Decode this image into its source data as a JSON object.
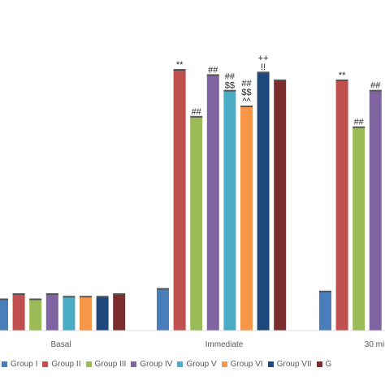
{
  "chart_data": {
    "type": "bar",
    "title": "",
    "xlabel": "",
    "ylabel": "",
    "categories": [
      "Basal",
      "Immediate",
      "30 mi"
    ],
    "ylim": [
      0,
      100
    ],
    "grid": false,
    "legend_position": "bottom",
    "series": [
      {
        "name": "Group I",
        "color": "#4A7EBB",
        "values": [
          12,
          16,
          15
        ]
      },
      {
        "name": "Group II",
        "color": "#C0504D",
        "values": [
          14,
          100,
          96
        ]
      },
      {
        "name": "Group III",
        "color": "#9BBB59",
        "values": [
          12,
          82,
          78
        ]
      },
      {
        "name": "Group IV",
        "color": "#8064A2",
        "values": [
          14,
          98,
          92
        ]
      },
      {
        "name": "Group V",
        "color": "#4BACC6",
        "values": [
          13,
          92,
          null
        ]
      },
      {
        "name": "Group VI",
        "color": "#F79646",
        "values": [
          13,
          86,
          null
        ]
      },
      {
        "name": "Group VII",
        "color": "#1F497D",
        "values": [
          13,
          99,
          null
        ]
      },
      {
        "name": "Group VIII",
        "color": "#7B2C2C",
        "values": [
          14,
          96,
          null
        ]
      }
    ],
    "annotations": [
      {
        "category": "Immediate",
        "series": "Group II",
        "text": "**"
      },
      {
        "category": "Immediate",
        "series": "Group III",
        "text": "##"
      },
      {
        "category": "Immediate",
        "series": "Group IV",
        "text": "##"
      },
      {
        "category": "Immediate",
        "series": "Group V",
        "text": "$$"
      },
      {
        "category": "Immediate",
        "series": "Group V",
        "text": "##"
      },
      {
        "category": "Immediate",
        "series": "Group VI",
        "text": "^^"
      },
      {
        "category": "Immediate",
        "series": "Group VI",
        "text": "$$"
      },
      {
        "category": "Immediate",
        "series": "Group VI",
        "text": "##"
      },
      {
        "category": "Immediate",
        "series": "Group VII",
        "text": "!!"
      },
      {
        "category": "Immediate",
        "series": "Group VII",
        "text": "++"
      },
      {
        "category": "30 mi",
        "series": "Group II",
        "text": "**"
      },
      {
        "category": "30 mi",
        "series": "Group III",
        "text": "##"
      },
      {
        "category": "30 mi",
        "series": "Group IV",
        "text": "##"
      }
    ]
  },
  "legend": {
    "items": [
      "Group I",
      "Group II",
      "Group III",
      "Group IV",
      "Group V",
      "Group VI",
      "Group VII",
      "G"
    ]
  }
}
